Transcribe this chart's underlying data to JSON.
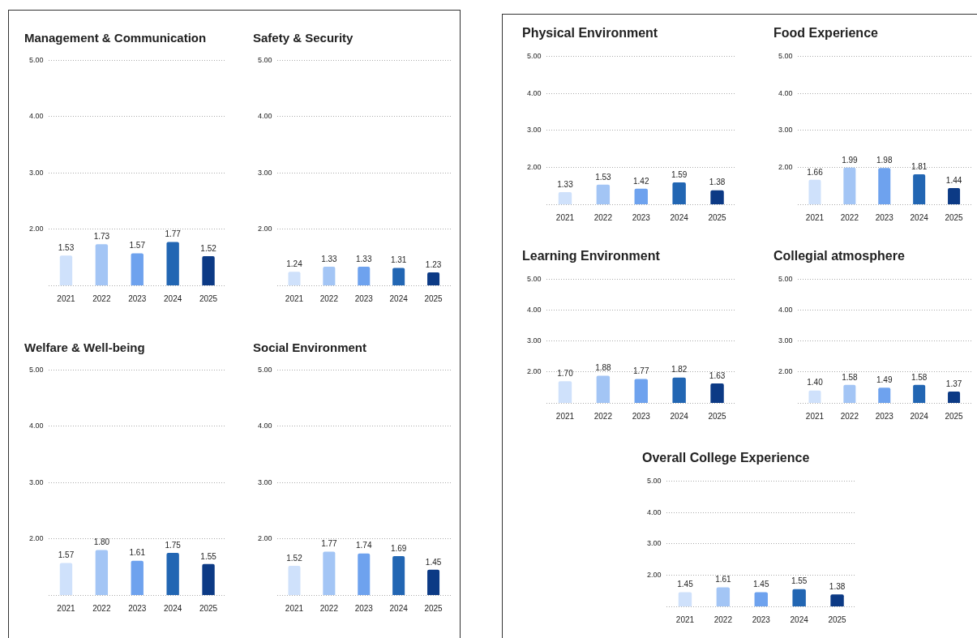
{
  "chart_data": [
    {
      "type": "bar",
      "title": "Management & Communication",
      "categories": [
        "2021",
        "2022",
        "2023",
        "2024",
        "2025"
      ],
      "values": [
        1.53,
        1.73,
        1.57,
        1.77,
        1.52
      ],
      "colors": [
        "#cfe1fb",
        "#a3c5f5",
        "#6ea2ee",
        "#2266b3",
        "#0c3a85"
      ],
      "ylim": [
        1,
        5
      ],
      "yticks": [
        {
          "value": 1,
          "label": null
        },
        {
          "value": 2,
          "label": "2.00"
        },
        {
          "value": 3,
          "label": "3.00"
        },
        {
          "value": 4,
          "label": "4.00"
        },
        {
          "value": 5,
          "label": "5.00"
        }
      ],
      "grid": "y",
      "data_labels": true
    },
    {
      "type": "bar",
      "title": "Safety & Security",
      "categories": [
        "2021",
        "2022",
        "2023",
        "2024",
        "2025"
      ],
      "values": [
        1.24,
        1.33,
        1.33,
        1.31,
        1.23
      ],
      "colors": [
        "#cfe1fb",
        "#a3c5f5",
        "#6ea2ee",
        "#2266b3",
        "#0c3a85"
      ],
      "ylim": [
        1,
        5
      ],
      "yticks": [
        {
          "value": 1,
          "label": null
        },
        {
          "value": 2,
          "label": "2.00"
        },
        {
          "value": 3,
          "label": "3.00"
        },
        {
          "value": 4,
          "label": "4.00"
        },
        {
          "value": 5,
          "label": "5.00"
        }
      ],
      "grid": "y",
      "data_labels": true
    },
    {
      "type": "bar",
      "title": "Welfare & Well-being",
      "categories": [
        "2021",
        "2022",
        "2023",
        "2024",
        "2025"
      ],
      "values": [
        1.57,
        1.8,
        1.61,
        1.75,
        1.55
      ],
      "colors": [
        "#cfe1fb",
        "#a3c5f5",
        "#6ea2ee",
        "#2266b3",
        "#0c3a85"
      ],
      "ylim": [
        1,
        5
      ],
      "yticks": [
        {
          "value": 1,
          "label": null
        },
        {
          "value": 2,
          "label": "2.00"
        },
        {
          "value": 3,
          "label": "3.00"
        },
        {
          "value": 4,
          "label": "4.00"
        },
        {
          "value": 5,
          "label": "5.00"
        }
      ],
      "grid": "y",
      "value_labels": [
        "1.57",
        "1.80",
        "1.61",
        "1.75",
        "1.55"
      ]
    },
    {
      "type": "bar",
      "title": "Social Environment",
      "categories": [
        "2021",
        "2022",
        "2023",
        "2024",
        "2025"
      ],
      "values": [
        1.52,
        1.77,
        1.74,
        1.69,
        1.45
      ],
      "colors": [
        "#cfe1fb",
        "#a3c5f5",
        "#6ea2ee",
        "#2266b3",
        "#0c3a85"
      ],
      "ylim": [
        1,
        5
      ],
      "yticks": [
        {
          "value": 1,
          "label": null
        },
        {
          "value": 2,
          "label": "2.00"
        },
        {
          "value": 3,
          "label": "3.00"
        },
        {
          "value": 4,
          "label": "4.00"
        },
        {
          "value": 5,
          "label": "5.00"
        }
      ],
      "grid": "y",
      "data_labels": true
    },
    {
      "type": "bar",
      "title": "Physical Environment",
      "categories": [
        "2021",
        "2022",
        "2023",
        "2024",
        "2025"
      ],
      "values": [
        1.33,
        1.53,
        1.42,
        1.59,
        1.38
      ],
      "colors": [
        "#cfe1fb",
        "#a3c5f5",
        "#6ea2ee",
        "#2266b3",
        "#0c3a85"
      ],
      "ylim": [
        1,
        5
      ],
      "yticks": [
        {
          "value": 1,
          "label": null
        },
        {
          "value": 2,
          "label": "2.00"
        },
        {
          "value": 3,
          "label": "3.00"
        },
        {
          "value": 4,
          "label": "4.00"
        },
        {
          "value": 5,
          "label": "5.00"
        }
      ],
      "grid": "y",
      "data_labels": true
    },
    {
      "type": "bar",
      "title": "Food Experience",
      "categories": [
        "2021",
        "2022",
        "2023",
        "2024",
        "2025"
      ],
      "values": [
        1.66,
        1.99,
        1.98,
        1.81,
        1.44
      ],
      "colors": [
        "#cfe1fb",
        "#a3c5f5",
        "#6ea2ee",
        "#2266b3",
        "#0c3a85"
      ],
      "ylim": [
        1,
        5
      ],
      "yticks": [
        {
          "value": 1,
          "label": null
        },
        {
          "value": 2,
          "label": "2.00"
        },
        {
          "value": 3,
          "label": "3.00"
        },
        {
          "value": 4,
          "label": "4.00"
        },
        {
          "value": 5,
          "label": "5.00"
        }
      ],
      "grid": "y",
      "data_labels": true
    },
    {
      "type": "bar",
      "title": "Learning Environment",
      "categories": [
        "2021",
        "2022",
        "2023",
        "2024",
        "2025"
      ],
      "values": [
        1.7,
        1.88,
        1.77,
        1.82,
        1.63
      ],
      "colors": [
        "#cfe1fb",
        "#a3c5f5",
        "#6ea2ee",
        "#2266b3",
        "#0c3a85"
      ],
      "ylim": [
        1,
        5
      ],
      "yticks": [
        {
          "value": 1,
          "label": null
        },
        {
          "value": 2,
          "label": "2.00"
        },
        {
          "value": 3,
          "label": "3.00"
        },
        {
          "value": 4,
          "label": "4.00"
        },
        {
          "value": 5,
          "label": "5.00"
        }
      ],
      "grid": "y",
      "value_labels": [
        "1.70",
        "1.88",
        "1.77",
        "1.82",
        "1.63"
      ]
    },
    {
      "type": "bar",
      "title": "Collegial atmosphere",
      "categories": [
        "2021",
        "2022",
        "2023",
        "2024",
        "2025"
      ],
      "values": [
        1.4,
        1.58,
        1.49,
        1.58,
        1.37
      ],
      "colors": [
        "#cfe1fb",
        "#a3c5f5",
        "#6ea2ee",
        "#2266b3",
        "#0c3a85"
      ],
      "ylim": [
        1,
        5
      ],
      "yticks": [
        {
          "value": 1,
          "label": null
        },
        {
          "value": 2,
          "label": "2.00"
        },
        {
          "value": 3,
          "label": "3.00"
        },
        {
          "value": 4,
          "label": "4.00"
        },
        {
          "value": 5,
          "label": "5.00"
        }
      ],
      "grid": "y",
      "value_labels": [
        "1.40",
        "1.58",
        "1.49",
        "1.58",
        "1.37"
      ]
    },
    {
      "type": "bar",
      "title": "Overall College Experience",
      "categories": [
        "2021",
        "2022",
        "2023",
        "2024",
        "2025"
      ],
      "values": [
        1.45,
        1.61,
        1.45,
        1.55,
        1.38
      ],
      "colors": [
        "#cfe1fb",
        "#a3c5f5",
        "#6ea2ee",
        "#2266b3",
        "#0c3a85"
      ],
      "ylim": [
        1,
        5
      ],
      "yticks": [
        {
          "value": 1,
          "label": null
        },
        {
          "value": 2,
          "label": "2.00"
        },
        {
          "value": 3,
          "label": "3.00"
        },
        {
          "value": 4,
          "label": "4.00"
        },
        {
          "value": 5,
          "label": "5.00"
        }
      ],
      "grid": "y",
      "data_labels": true
    }
  ]
}
